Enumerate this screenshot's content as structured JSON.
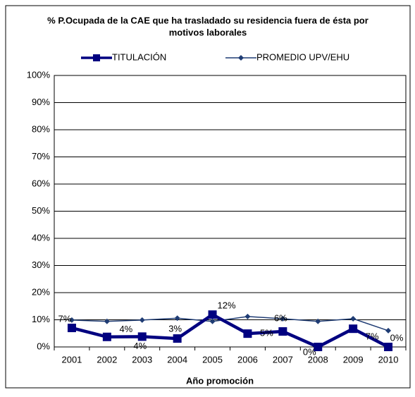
{
  "chart_data": {
    "type": "line",
    "title": "% P.Ocupada de la CAE que ha trasladado su residencia fuera de ésta por motivos laborales",
    "title_lines": [
      "% P.Ocupada de la CAE que ha trasladado su residencia fuera de ésta por",
      "motivos laborales"
    ],
    "x_label": "Año promoción",
    "categories": [
      "2001",
      "2002",
      "2003",
      "2004",
      "2005",
      "2006",
      "2007",
      "2008",
      "2009",
      "2010"
    ],
    "series": [
      {
        "name": "TITULACIÓN",
        "color": "#000080",
        "values": [
          7,
          3.7,
          3.8,
          3.1,
          11.9,
          4.9,
          5.7,
          0,
          6.7,
          0
        ],
        "value_labels": [
          "7%",
          "4%",
          "4%",
          "3%",
          "12%",
          "5%",
          "6%",
          "0%",
          "7%",
          "0%"
        ]
      },
      {
        "name": "PROMEDIO UPV/EHU",
        "color": "#1f3c74",
        "values": [
          9.9,
          9.4,
          9.9,
          10.6,
          9.4,
          11.2,
          10.4,
          9.4,
          10.4,
          6.0
        ]
      }
    ],
    "ylim": [
      0,
      100
    ],
    "yticks": [
      {
        "value": 0,
        "label": "0%"
      },
      {
        "value": 10,
        "label": "10%"
      },
      {
        "value": 20,
        "label": "20%"
      },
      {
        "value": 30,
        "label": "30%"
      },
      {
        "value": 40,
        "label": "40%"
      },
      {
        "value": 50,
        "label": "50%"
      },
      {
        "value": 60,
        "label": "60%"
      },
      {
        "value": 70,
        "label": "70%"
      },
      {
        "value": 80,
        "label": "80%"
      },
      {
        "value": 90,
        "label": "90%"
      },
      {
        "value": 100,
        "label": "100%"
      }
    ],
    "grid": true
  }
}
